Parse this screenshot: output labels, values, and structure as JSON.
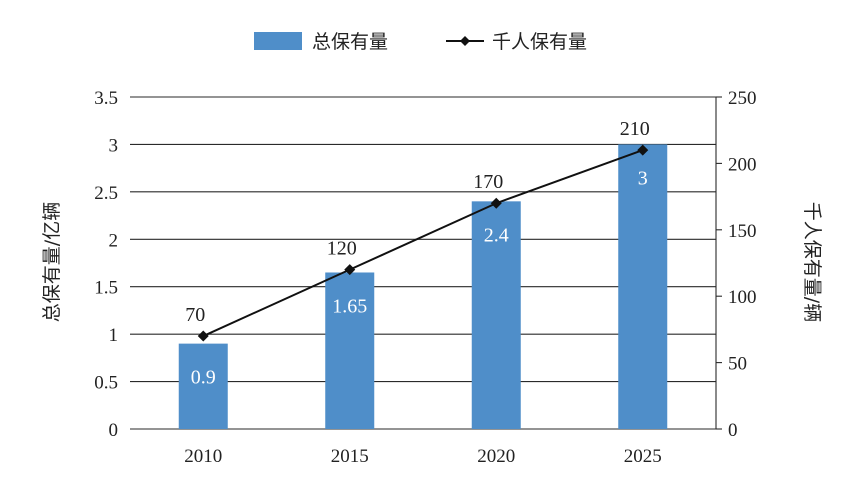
{
  "chart_data": {
    "type": "bar",
    "categories": [
      "2010",
      "2015",
      "2020",
      "2025"
    ],
    "series": [
      {
        "name": "总保有量",
        "type": "bar",
        "axis": "left",
        "values": [
          0.9,
          1.65,
          2.4,
          3
        ],
        "value_labels": [
          "0.9",
          "1.65",
          "2.4",
          "3"
        ],
        "color": "#4f8ec9"
      },
      {
        "name": "千人保有量",
        "type": "line",
        "axis": "right",
        "marker": "diamond",
        "values": [
          70,
          120,
          170,
          210
        ],
        "value_labels": [
          "70",
          "120",
          "170",
          "210"
        ],
        "color": "#111111"
      }
    ],
    "y_left": {
      "label": "总保有量/亿辆",
      "lim": [
        0,
        3.5
      ],
      "ticks": [
        "0",
        "0.5",
        "1",
        "1.5",
        "2",
        "2.5",
        "3",
        "3.5"
      ]
    },
    "y_right": {
      "label": "千人保有量/辆",
      "lim": [
        0,
        250
      ],
      "ticks": [
        "0",
        "50",
        "100",
        "150",
        "200",
        "250"
      ]
    },
    "grid": true,
    "legend": "top-center"
  }
}
